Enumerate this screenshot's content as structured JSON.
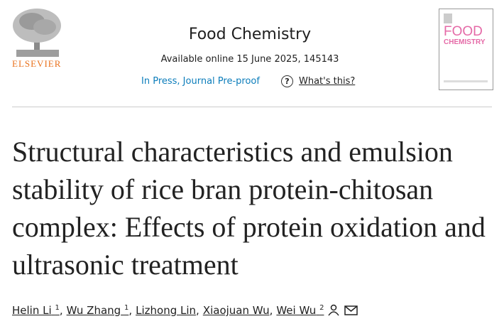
{
  "publisher": "ELSEVIER",
  "journal": "Food Chemistry",
  "availability": "Available online 15 June 2025, 145143",
  "status": "In Press, Journal Pre-proof",
  "help_icon": "?",
  "help_link": "What's this?",
  "cover": {
    "title_1": "FOOD",
    "title_2": "CHEMISTRY"
  },
  "title": "Structural characteristics and emulsion stability of rice bran protein-chitosan complex: Effects of protein oxidation and ultrasonic treatment",
  "authors": [
    {
      "name": "Helin Li",
      "sup": "1"
    },
    {
      "name": "Wu Zhang",
      "sup": "1"
    },
    {
      "name": "Lizhong Lin",
      "sup": null
    },
    {
      "name": "Xiaojuan Wu",
      "sup": null
    },
    {
      "name": "Wei Wu",
      "sup": "2"
    }
  ],
  "separator": ","
}
